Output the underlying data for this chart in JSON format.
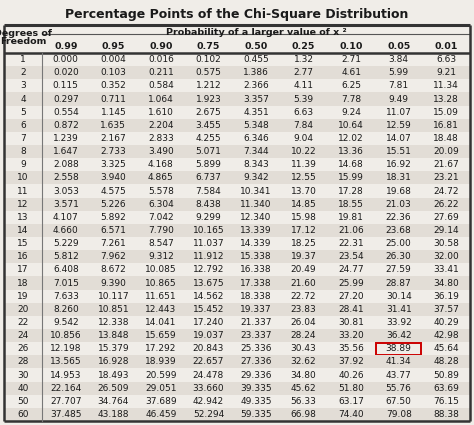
{
  "title": "Percentage Points of the Chi-Square Distribution",
  "prob_labels": [
    "0.99",
    "0.95",
    "0.90",
    "0.75",
    "0.50",
    "0.25",
    "0.10",
    "0.05",
    "0.01"
  ],
  "rows": [
    [
      1,
      "0.000",
      "0.004",
      "0.016",
      "0.102",
      "0.455",
      "1.32",
      "2.71",
      "3.84",
      "6.63"
    ],
    [
      2,
      "0.020",
      "0.103",
      "0.211",
      "0.575",
      "1.386",
      "2.77",
      "4.61",
      "5.99",
      "9.21"
    ],
    [
      3,
      "0.115",
      "0.352",
      "0.584",
      "1.212",
      "2.366",
      "4.11",
      "6.25",
      "7.81",
      "11.34"
    ],
    [
      4,
      "0.297",
      "0.711",
      "1.064",
      "1.923",
      "3.357",
      "5.39",
      "7.78",
      "9.49",
      "13.28"
    ],
    [
      5,
      "0.554",
      "1.145",
      "1.610",
      "2.675",
      "4.351",
      "6.63",
      "9.24",
      "11.07",
      "15.09"
    ],
    [
      6,
      "0.872",
      "1.635",
      "2.204",
      "3.455",
      "5.348",
      "7.84",
      "10.64",
      "12.59",
      "16.81"
    ],
    [
      7,
      "1.239",
      "2.167",
      "2.833",
      "4.255",
      "6.346",
      "9.04",
      "12.02",
      "14.07",
      "18.48"
    ],
    [
      8,
      "1.647",
      "2.733",
      "3.490",
      "5.071",
      "7.344",
      "10.22",
      "13.36",
      "15.51",
      "20.09"
    ],
    [
      9,
      "2.088",
      "3.325",
      "4.168",
      "5.899",
      "8.343",
      "11.39",
      "14.68",
      "16.92",
      "21.67"
    ],
    [
      10,
      "2.558",
      "3.940",
      "4.865",
      "6.737",
      "9.342",
      "12.55",
      "15.99",
      "18.31",
      "23.21"
    ],
    [
      11,
      "3.053",
      "4.575",
      "5.578",
      "7.584",
      "10.341",
      "13.70",
      "17.28",
      "19.68",
      "24.72"
    ],
    [
      12,
      "3.571",
      "5.226",
      "6.304",
      "8.438",
      "11.340",
      "14.85",
      "18.55",
      "21.03",
      "26.22"
    ],
    [
      13,
      "4.107",
      "5.892",
      "7.042",
      "9.299",
      "12.340",
      "15.98",
      "19.81",
      "22.36",
      "27.69"
    ],
    [
      14,
      "4.660",
      "6.571",
      "7.790",
      "10.165",
      "13.339",
      "17.12",
      "21.06",
      "23.68",
      "29.14"
    ],
    [
      15,
      "5.229",
      "7.261",
      "8.547",
      "11.037",
      "14.339",
      "18.25",
      "22.31",
      "25.00",
      "30.58"
    ],
    [
      16,
      "5.812",
      "7.962",
      "9.312",
      "11.912",
      "15.338",
      "19.37",
      "23.54",
      "26.30",
      "32.00"
    ],
    [
      17,
      "6.408",
      "8.672",
      "10.085",
      "12.792",
      "16.338",
      "20.49",
      "24.77",
      "27.59",
      "33.41"
    ],
    [
      18,
      "7.015",
      "9.390",
      "10.865",
      "13.675",
      "17.338",
      "21.60",
      "25.99",
      "28.87",
      "34.80"
    ],
    [
      19,
      "7.633",
      "10.117",
      "11.651",
      "14.562",
      "18.338",
      "22.72",
      "27.20",
      "30.14",
      "36.19"
    ],
    [
      20,
      "8.260",
      "10.851",
      "12.443",
      "15.452",
      "19.337",
      "23.83",
      "28.41",
      "31.41",
      "37.57"
    ],
    [
      22,
      "9.542",
      "12.338",
      "14.041",
      "17.240",
      "21.337",
      "26.04",
      "30.81",
      "33.92",
      "40.29"
    ],
    [
      24,
      "10.856",
      "13.848",
      "15.659",
      "19.037",
      "23.337",
      "28.24",
      "33.20",
      "36.42",
      "42.98"
    ],
    [
      26,
      "12.198",
      "15.379",
      "17.292",
      "20.843",
      "25.336",
      "30.43",
      "35.56",
      "38.89",
      "45.64"
    ],
    [
      28,
      "13.565",
      "16.928",
      "18.939",
      "22.657",
      "27.336",
      "32.62",
      "37.92",
      "41.34",
      "48.28"
    ],
    [
      30,
      "14.953",
      "18.493",
      "20.599",
      "24.478",
      "29.336",
      "34.80",
      "40.26",
      "43.77",
      "50.89"
    ],
    [
      40,
      "22.164",
      "26.509",
      "29.051",
      "33.660",
      "39.335",
      "45.62",
      "51.80",
      "55.76",
      "63.69"
    ],
    [
      50,
      "27.707",
      "34.764",
      "37.689",
      "42.942",
      "49.335",
      "56.33",
      "63.17",
      "67.50",
      "76.15"
    ],
    [
      60,
      "37.485",
      "43.188",
      "46.459",
      "52.294",
      "59.335",
      "66.98",
      "74.40",
      "79.08",
      "88.38"
    ]
  ],
  "highlight_row_idx": 22,
  "highlight_col_idx": 7,
  "bg_color": "#f0ede8",
  "row_odd_bg": "#e2ddd6",
  "row_even_bg": "#f0ede8",
  "highlight_box_color": "#cc0000",
  "text_color": "#1a1a1a",
  "font_size": 6.5,
  "title_font_size": 9.0
}
